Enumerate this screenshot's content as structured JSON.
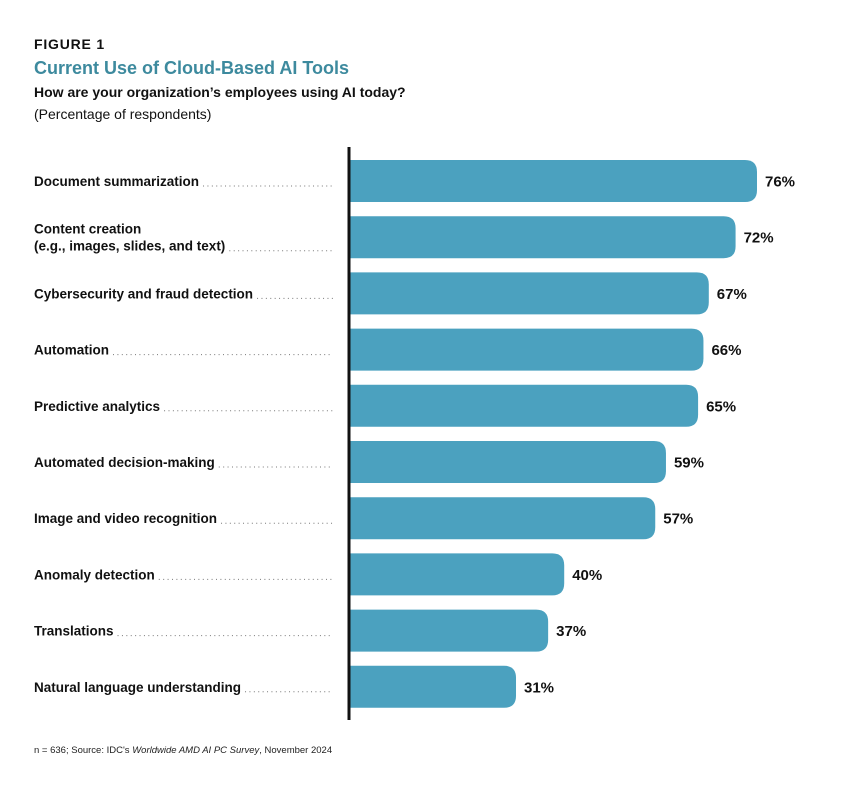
{
  "figure_label": "FIGURE 1",
  "footer": {
    "prefix": "n = 636; Source: IDC's ",
    "italic": "Worldwide AMD AI PC Survey",
    "suffix": ", November 2024"
  },
  "colors": {
    "bar": "#4ba1bf",
    "title": "#3d8a9e",
    "axis": "#111111"
  },
  "chart_data": {
    "type": "bar",
    "orientation": "horizontal",
    "title": "Current Use of Cloud-Based AI Tools",
    "subtitle": "How are your organization’s employees using AI today?",
    "note": "(Percentage of respondents)",
    "xlabel": "",
    "ylabel": "",
    "xlim": [
      0,
      76
    ],
    "grid": false,
    "categories": [
      [
        "Document summarization"
      ],
      [
        "Content creation",
        "(e.g., images, slides, and text)"
      ],
      [
        "Cybersecurity and fraud detection"
      ],
      [
        "Automation"
      ],
      [
        "Predictive analytics"
      ],
      [
        "Automated decision-making"
      ],
      [
        "Image and video recognition"
      ],
      [
        "Anomaly detection"
      ],
      [
        "Translations"
      ],
      [
        "Natural language understanding"
      ]
    ],
    "values": [
      76,
      72,
      67,
      66,
      65,
      59,
      57,
      40,
      37,
      31
    ],
    "value_labels": [
      "76%",
      "72%",
      "67%",
      "66%",
      "65%",
      "59%",
      "57%",
      "40%",
      "37%",
      "31%"
    ]
  }
}
